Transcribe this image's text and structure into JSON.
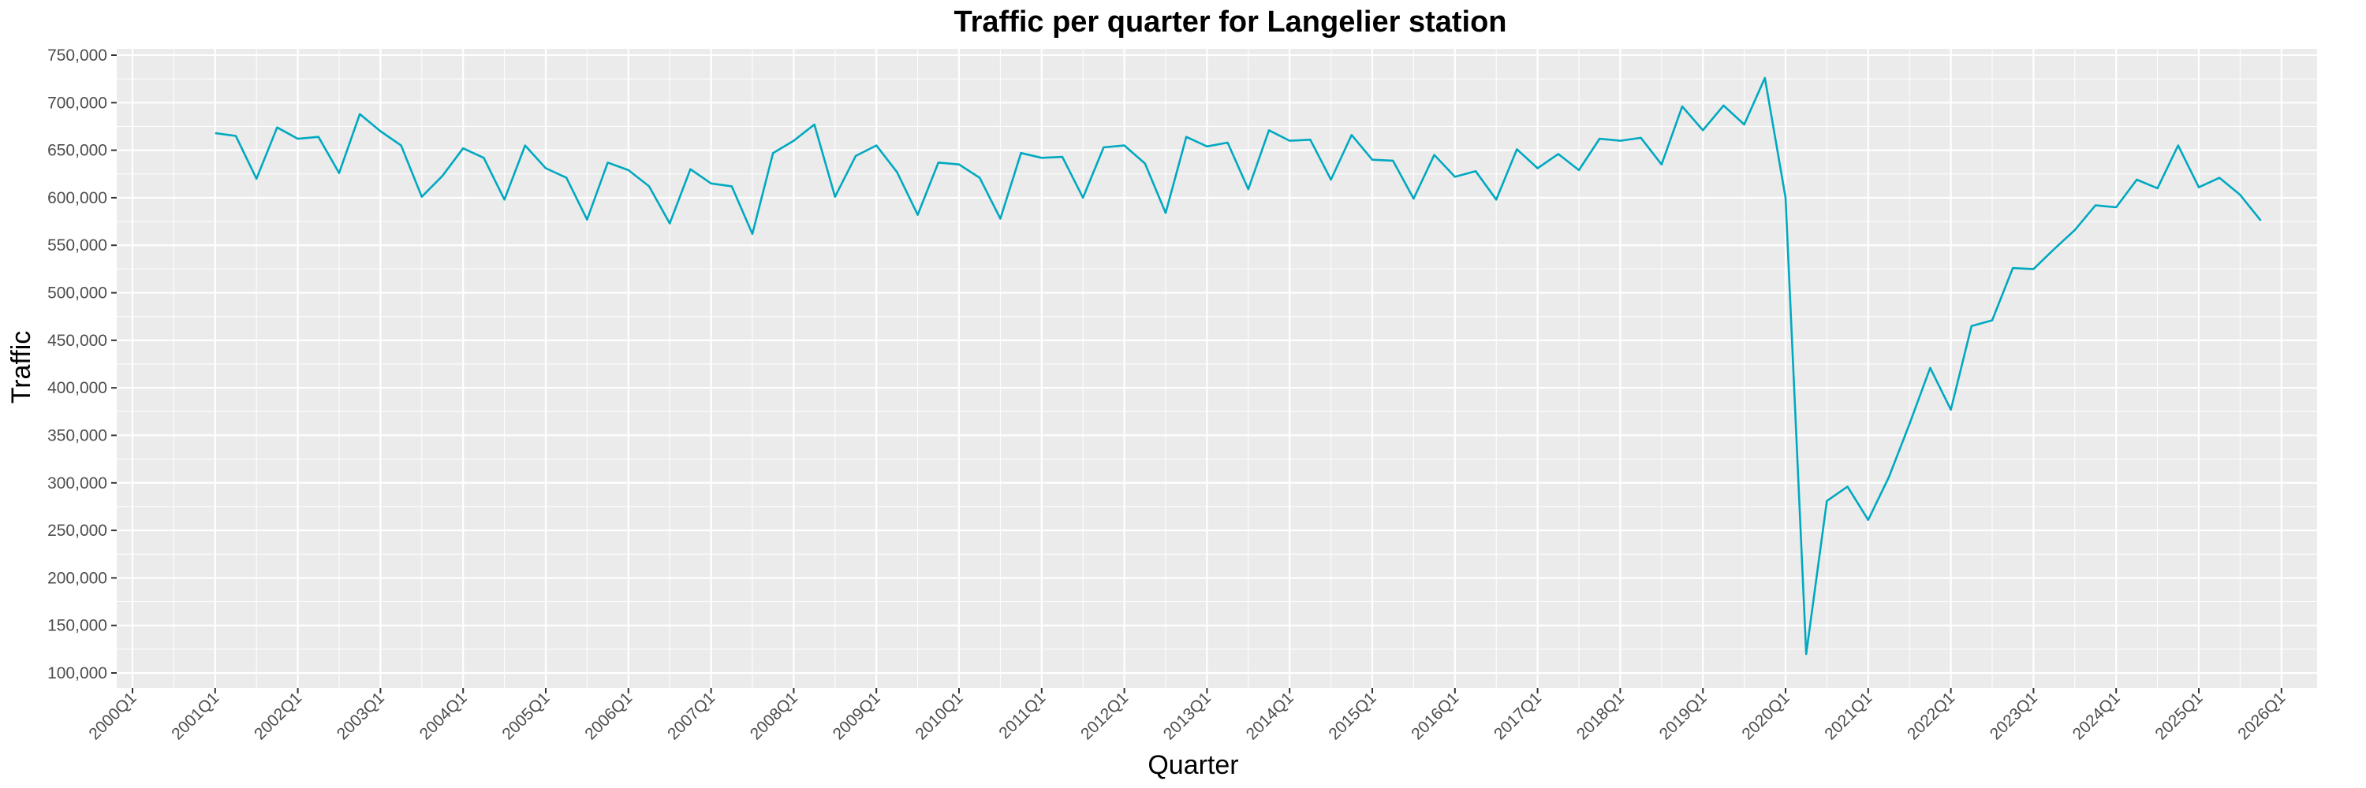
{
  "chart_data": {
    "type": "line",
    "title": "Traffic per quarter for Langelier station",
    "xlabel": "Quarter",
    "ylabel": "Traffic",
    "x_ticks": [
      "2000Q1",
      "2001Q1",
      "2002Q1",
      "2003Q1",
      "2004Q1",
      "2005Q1",
      "2006Q1",
      "2007Q1",
      "2008Q1",
      "2009Q1",
      "2010Q1",
      "2011Q1",
      "2012Q1",
      "2013Q1",
      "2014Q1",
      "2015Q1",
      "2016Q1",
      "2017Q1",
      "2018Q1",
      "2019Q1",
      "2020Q1",
      "2021Q1",
      "2022Q1",
      "2023Q1",
      "2024Q1",
      "2025Q1",
      "2026Q1"
    ],
    "y_ticks": [
      "100,000",
      "150,000",
      "200,000",
      "250,000",
      "300,000",
      "350,000",
      "400,000",
      "450,000",
      "500,000",
      "550,000",
      "600,000",
      "650,000",
      "700,000",
      "750,000"
    ],
    "ylim": [
      100000,
      750000
    ],
    "grid": true,
    "colors": {
      "line": "#00A9C0",
      "panel": "#EBEBEB",
      "grid": "#FFFFFF"
    },
    "x_start": "2001Q1",
    "values": [
      668000,
      665000,
      620000,
      674000,
      662000,
      664000,
      626000,
      688000,
      670000,
      655000,
      601000,
      623000,
      652000,
      642000,
      598000,
      655000,
      631000,
      621000,
      577000,
      637000,
      629000,
      612000,
      573000,
      630000,
      615000,
      612000,
      562000,
      647000,
      660000,
      677000,
      601000,
      644000,
      655000,
      627000,
      582000,
      637000,
      635000,
      621000,
      578000,
      647000,
      642000,
      643000,
      600000,
      653000,
      655000,
      636000,
      584000,
      664000,
      654000,
      658000,
      609000,
      671000,
      660000,
      661000,
      619000,
      666000,
      640000,
      639000,
      599000,
      645000,
      622000,
      628000,
      598000,
      651000,
      631000,
      646000,
      629000,
      662000,
      660000,
      663000,
      635000,
      696000,
      671000,
      697000,
      677000,
      726000,
      600000,
      120000,
      281000,
      296000,
      261000,
      306000,
      362000,
      421000,
      377000,
      465000,
      471000,
      526000,
      525000,
      546000,
      566000,
      592000,
      590000,
      619000,
      610000,
      655000,
      611000,
      621000,
      603000,
      576000
    ]
  }
}
